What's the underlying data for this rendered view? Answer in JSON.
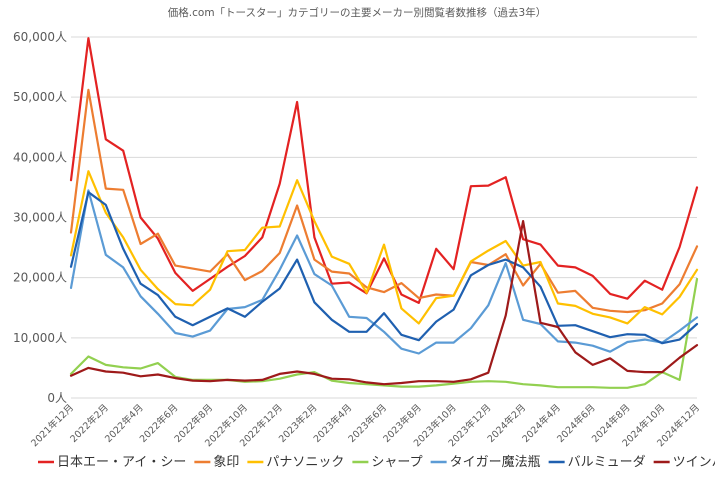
{
  "chart_data": {
    "type": "line",
    "title": "価格.com「トースター」カテゴリーの主要メーカー別閲覧者数推移（過去3年）",
    "y_unit_suffix": "人",
    "ylim": [
      0,
      60000
    ],
    "y_ticks": [
      0,
      10000,
      20000,
      30000,
      40000,
      50000,
      60000
    ],
    "y_tick_labels": [
      "0人",
      "10,000人",
      "20,000人",
      "30,000人",
      "40,000人",
      "50,000人",
      "60,000人"
    ],
    "grid": true,
    "legend_position": "bottom",
    "x_tick_labels": [
      "2021年12月",
      "2022年2月",
      "2022年4月",
      "2022年6月",
      "2022年8月",
      "2022年10月",
      "2022年12月",
      "2023年2月",
      "2023年4月",
      "2023年6月",
      "2023年8月",
      "2023年10月",
      "2023年12月",
      "2024年2月",
      "2024年4月",
      "2024年6月",
      "2024年8月",
      "2024年10月",
      "2024年12月"
    ],
    "categories": [
      "2021-12",
      "2022-01",
      "2022-02",
      "2022-03",
      "2022-04",
      "2022-05",
      "2022-06",
      "2022-07",
      "2022-08",
      "2022-09",
      "2022-10",
      "2022-11",
      "2022-12",
      "2023-01",
      "2023-02",
      "2023-03",
      "2023-04",
      "2023-05",
      "2023-06",
      "2023-07",
      "2023-08",
      "2023-09",
      "2023-10",
      "2023-11",
      "2023-12",
      "2024-01",
      "2024-02",
      "2024-03",
      "2024-04",
      "2024-05",
      "2024-06",
      "2024-07",
      "2024-08",
      "2024-09",
      "2024-10",
      "2024-11",
      "2024-12"
    ],
    "series": [
      {
        "name": "日本エー・アイ・シー",
        "color": "#e32222",
        "values": [
          36200,
          59800,
          43000,
          41100,
          30000,
          26500,
          20800,
          17800,
          19800,
          21800,
          23600,
          26700,
          35600,
          49200,
          26700,
          19000,
          19200,
          17400,
          23200,
          17200,
          15800,
          24800,
          21400,
          35200,
          35300,
          36700,
          26400,
          25500,
          22000,
          21700,
          20300,
          17300,
          16500,
          19500,
          18000,
          25100,
          35000
        ]
      },
      {
        "name": "象印",
        "color": "#ed7d31",
        "values": [
          27500,
          51200,
          34800,
          34600,
          25600,
          27300,
          22000,
          21500,
          21000,
          23900,
          19600,
          21100,
          24100,
          32000,
          23000,
          21000,
          20700,
          18400,
          17600,
          19100,
          16600,
          17200,
          17000,
          22600,
          22100,
          23900,
          18700,
          22300,
          17500,
          17800,
          15000,
          14500,
          14300,
          14600,
          15700,
          18900,
          25200
        ]
      },
      {
        "name": "パナソニック",
        "color": "#ffc000",
        "values": [
          23700,
          37700,
          30800,
          26700,
          21300,
          18100,
          15600,
          15400,
          18000,
          24400,
          24600,
          28300,
          28500,
          36200,
          29400,
          23500,
          22300,
          17500,
          25500,
          14900,
          12400,
          16600,
          17000,
          22700,
          24500,
          26100,
          22000,
          22600,
          15700,
          15300,
          14000,
          13400,
          12400,
          15100,
          13900,
          16800,
          21300
        ]
      },
      {
        "name": "シャープ",
        "color": "#92d050",
        "values": [
          4000,
          6900,
          5500,
          5100,
          4900,
          5800,
          3500,
          3000,
          3000,
          3000,
          2700,
          2800,
          3200,
          3900,
          4300,
          2900,
          2500,
          2300,
          2100,
          1900,
          1900,
          2100,
          2400,
          2700,
          2800,
          2700,
          2300,
          2100,
          1800,
          1800,
          1800,
          1700,
          1700,
          2300,
          4300,
          3000,
          19800
        ]
      },
      {
        "name": "タイガー魔法瓶",
        "color": "#5b9bd5",
        "values": [
          18300,
          34500,
          23800,
          21700,
          16900,
          14000,
          10800,
          10200,
          11200,
          14800,
          15100,
          16300,
          21300,
          27000,
          20600,
          18700,
          13500,
          13300,
          11000,
          8200,
          7400,
          9200,
          9200,
          11600,
          15400,
          22400,
          13000,
          12300,
          9400,
          9200,
          8700,
          7700,
          9300,
          9700,
          9200,
          11200,
          13400
        ]
      },
      {
        "name": "バルミューダ",
        "color": "#1f60b0",
        "values": [
          21800,
          34200,
          32100,
          24800,
          19000,
          17100,
          13500,
          12100,
          13500,
          14900,
          13500,
          16000,
          18200,
          23000,
          15900,
          13000,
          11000,
          11000,
          14100,
          10500,
          9600,
          12700,
          14700,
          20400,
          22100,
          23000,
          21700,
          18500,
          12000,
          12100,
          11100,
          10100,
          10600,
          10500,
          9100,
          9700,
          12300
        ]
      },
      {
        "name": "ツインバード",
        "color": "#9e1a1a",
        "values": [
          3700,
          5000,
          4400,
          4200,
          3600,
          3900,
          3300,
          2900,
          2800,
          3000,
          2900,
          3000,
          4000,
          4400,
          4000,
          3200,
          3100,
          2600,
          2300,
          2500,
          2800,
          2800,
          2700,
          3100,
          4200,
          13700,
          29400,
          12500,
          11800,
          7600,
          5500,
          6600,
          4500,
          4300,
          4300,
          6700,
          8800
        ]
      }
    ]
  }
}
